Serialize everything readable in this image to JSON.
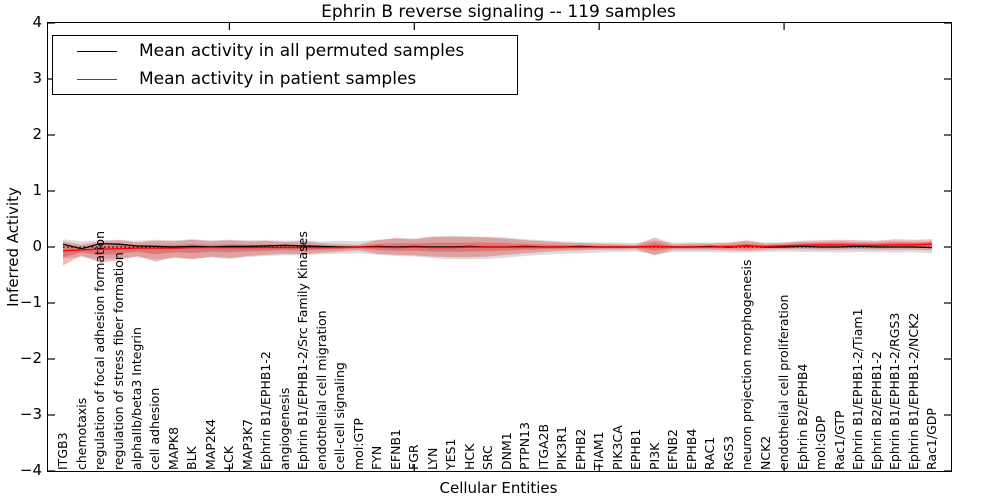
{
  "title": "Ephrin B reverse signaling -- 119 samples",
  "axes": {
    "xlabel": "Cellular Entities",
    "ylabel": "Inferred Activity",
    "ytick_labels": [
      "4",
      "3",
      "2",
      "1",
      "0",
      "−1",
      "−2",
      "−3",
      "−4"
    ],
    "ytick_values": [
      4,
      3,
      2,
      1,
      0,
      -1,
      -2,
      -3,
      -4
    ]
  },
  "legend": {
    "position": "upper left",
    "items": [
      {
        "label": "Mean activity in all permuted samples",
        "color": "#000000"
      },
      {
        "label": "Mean activity in patient samples",
        "color": "#ff0000"
      }
    ]
  },
  "colors": {
    "permuted_line": "#000000",
    "patient_line": "#ff0000",
    "permuted_band": "#8c8c8c",
    "patient_band": "#e02828",
    "baseline": "#000000"
  },
  "chart_data": {
    "type": "line",
    "title": "Ephrin B reverse signaling -- 119 samples",
    "xlabel": "Cellular Entities",
    "ylabel": "Inferred Activity",
    "ylim": [
      -4,
      4
    ],
    "grid": false,
    "legend_position": "upper left",
    "baseline": {
      "y": 0,
      "style": "dotted",
      "color": "#000000"
    },
    "categories": [
      "ITGB3",
      "chemotaxis",
      "regulation of focal adhesion formation",
      "regulation of stress fiber formation",
      "alphaIIb/beta3 Integrin",
      "cell adhesion",
      "MAPK8",
      "BLK",
      "MAP2K4",
      "LCK",
      "MAP3K7",
      "Ephrin B1/EPHB1-2",
      "angiogenesis",
      "Ephrin B1/EPHB1-2/Src Family Kinases",
      "endothelial cell migration",
      "cell-cell signaling",
      "mol:GTP",
      "FYN",
      "EFNB1",
      "FGR",
      "LYN",
      "YES1",
      "HCK",
      "SRC",
      "DNM1",
      "PTPN13",
      "ITGA2B",
      "PIK3R1",
      "EPHB2",
      "TIAM1",
      "PIK3CA",
      "EPHB1",
      "PI3K",
      "EFNB2",
      "EPHB4",
      "RAC1",
      "RGS3",
      "neuron projection morphogenesis",
      "NCK2",
      "endothelial cell proliferation",
      "Ephrin B2/EPHB4",
      "mol:GDP",
      "Rac1/GTP",
      "Ephrin B1/EPHB1-2/Tiam1",
      "Ephrin B2/EPHB1-2",
      "Ephrin B1/EPHB1-2/RGS3",
      "Ephrin B1/EPHB1-2/NCK2",
      "Rac1/GDP"
    ],
    "series": [
      {
        "name": "Mean activity in all permuted samples",
        "color": "#000000",
        "values": [
          0.05,
          -0.03,
          0.06,
          0.05,
          0.02,
          0.01,
          0.0,
          0.01,
          0.0,
          0.01,
          0.01,
          0.02,
          0.03,
          0.02,
          0.01,
          0.0,
          0.0,
          0.01,
          0.0,
          0.01,
          0.0,
          0.0,
          0.01,
          0.0,
          0.0,
          0.01,
          0.0,
          0.0,
          0.01,
          0.0,
          0.0,
          0.0,
          0.01,
          0.0,
          0.0,
          0.01,
          0.0,
          0.02,
          0.0,
          0.0,
          0.01,
          0.0,
          0.0,
          0.01,
          0.0,
          0.0,
          0.0,
          -0.01
        ]
      },
      {
        "name": "Mean activity in patient samples",
        "color": "#ff0000",
        "values": [
          -0.07,
          -0.05,
          -0.04,
          -0.03,
          -0.02,
          -0.02,
          -0.02,
          -0.01,
          -0.01,
          -0.01,
          -0.01,
          -0.01,
          -0.01,
          -0.01,
          -0.01,
          -0.01,
          0.0,
          0.0,
          -0.01,
          0.0,
          -0.01,
          -0.01,
          0.0,
          0.0,
          0.0,
          0.0,
          0.0,
          0.0,
          0.0,
          0.0,
          0.0,
          0.0,
          0.01,
          0.0,
          0.0,
          0.0,
          0.01,
          0.01,
          0.01,
          0.02,
          0.03,
          0.04,
          0.04,
          0.03,
          0.03,
          0.04,
          0.04,
          0.05
        ]
      }
    ],
    "bands": [
      {
        "name": "permuted samples std band",
        "color": "#8c8c8c",
        "upper": [
          0.14,
          0.1,
          0.12,
          0.13,
          0.11,
          0.13,
          0.12,
          0.14,
          0.12,
          0.13,
          0.12,
          0.12,
          0.11,
          0.12,
          0.1,
          0.11,
          0.1,
          0.13,
          0.15,
          0.15,
          0.19,
          0.2,
          0.19,
          0.18,
          0.17,
          0.14,
          0.12,
          0.1,
          0.09,
          0.08,
          0.08,
          0.07,
          0.12,
          0.08,
          0.08,
          0.08,
          0.09,
          0.1,
          0.08,
          0.08,
          0.09,
          0.09,
          0.1,
          0.09,
          0.09,
          0.1,
          0.09,
          0.1
        ],
        "lower": [
          -0.2,
          -0.18,
          -0.22,
          -0.2,
          -0.18,
          -0.22,
          -0.2,
          -0.21,
          -0.19,
          -0.21,
          -0.18,
          -0.16,
          -0.15,
          -0.15,
          -0.13,
          -0.12,
          -0.11,
          -0.14,
          -0.16,
          -0.17,
          -0.2,
          -0.22,
          -0.22,
          -0.21,
          -0.19,
          -0.16,
          -0.14,
          -0.12,
          -0.11,
          -0.1,
          -0.09,
          -0.08,
          -0.13,
          -0.09,
          -0.09,
          -0.09,
          -0.1,
          -0.1,
          -0.09,
          -0.08,
          -0.09,
          -0.09,
          -0.1,
          -0.09,
          -0.09,
          -0.1,
          -0.09,
          -0.11
        ]
      },
      {
        "name": "patient samples std band",
        "color": "#e02828",
        "upper": [
          0.1,
          0.04,
          0.1,
          0.12,
          0.08,
          0.11,
          0.1,
          0.13,
          0.1,
          0.12,
          0.1,
          0.11,
          0.09,
          0.1,
          0.07,
          0.05,
          0.04,
          0.12,
          0.16,
          0.14,
          0.18,
          0.18,
          0.18,
          0.17,
          0.15,
          0.12,
          0.1,
          0.08,
          0.07,
          0.06,
          0.05,
          0.04,
          0.17,
          0.05,
          0.06,
          0.06,
          0.07,
          0.12,
          0.06,
          0.08,
          0.11,
          0.12,
          0.13,
          0.12,
          0.11,
          0.14,
          0.13,
          0.14
        ],
        "lower": [
          -0.33,
          -0.15,
          -0.28,
          -0.24,
          -0.16,
          -0.26,
          -0.18,
          -0.22,
          -0.17,
          -0.2,
          -0.16,
          -0.14,
          -0.12,
          -0.13,
          -0.1,
          -0.08,
          -0.06,
          -0.12,
          -0.14,
          -0.15,
          -0.17,
          -0.18,
          -0.18,
          -0.17,
          -0.14,
          -0.11,
          -0.09,
          -0.07,
          -0.06,
          -0.05,
          -0.05,
          -0.04,
          -0.15,
          -0.05,
          -0.05,
          -0.05,
          -0.06,
          -0.07,
          -0.05,
          -0.04,
          -0.04,
          -0.05,
          -0.05,
          -0.04,
          -0.05,
          -0.05,
          -0.05,
          -0.06
        ]
      }
    ]
  }
}
